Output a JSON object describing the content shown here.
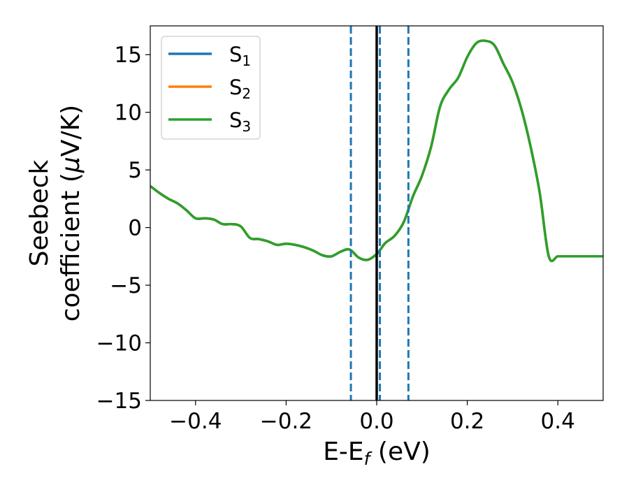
{
  "chart_data": {
    "type": "line",
    "xlabel": {
      "main": "E-E",
      "sub": "f",
      "tail": " (eV)"
    },
    "ylabel": {
      "line1": "Seebeck",
      "line2_a": "coefficient  (",
      "line2_mu": "μ",
      "line2_b": "V/K)"
    },
    "xlim": [
      -0.5,
      0.5
    ],
    "ylim": [
      -15,
      17.5
    ],
    "xticks": [
      -0.4,
      -0.2,
      0.0,
      0.2,
      0.4
    ],
    "xtick_labels": [
      "−0.4",
      "−0.2",
      "0.0",
      "0.2",
      "0.4"
    ],
    "yticks": [
      -15,
      -10,
      -5,
      0,
      5,
      10,
      15
    ],
    "ytick_labels": [
      "−15",
      "−10",
      "−5",
      "0",
      "5",
      "10",
      "15"
    ],
    "legend_position": "top-left",
    "grid": false,
    "x": [
      -0.5,
      -0.48,
      -0.46,
      -0.44,
      -0.42,
      -0.4,
      -0.38,
      -0.36,
      -0.34,
      -0.32,
      -0.3,
      -0.28,
      -0.26,
      -0.24,
      -0.22,
      -0.2,
      -0.18,
      -0.16,
      -0.14,
      -0.12,
      -0.1,
      -0.08,
      -0.06,
      -0.04,
      -0.02,
      0.0,
      0.01,
      0.02,
      0.04,
      0.06,
      0.08,
      0.1,
      0.12,
      0.14,
      0.16,
      0.18,
      0.2,
      0.22,
      0.24,
      0.26,
      0.28,
      0.3,
      0.32,
      0.34,
      0.36,
      0.38,
      0.4,
      0.42,
      0.44,
      0.46,
      0.48,
      0.5
    ],
    "series": [
      {
        "name": "S",
        "sub": "1",
        "color": "#1f77b4",
        "values": [
          3.6,
          3.0,
          2.5,
          2.1,
          1.5,
          0.8,
          0.8,
          0.7,
          0.3,
          0.3,
          0.1,
          -0.9,
          -1.0,
          -1.2,
          -1.5,
          -1.4,
          -1.5,
          -1.7,
          -2.0,
          -2.4,
          -2.5,
          -2.1,
          -1.9,
          -2.6,
          -2.8,
          -2.3,
          -1.8,
          -1.3,
          -0.7,
          0.5,
          2.7,
          4.5,
          7.0,
          10.5,
          12.0,
          13.0,
          14.8,
          16.0,
          16.2,
          15.8,
          14.2,
          12.6,
          10.2,
          7.0,
          3.0,
          -2.5,
          -2.5,
          -2.5,
          -2.5,
          -2.5,
          -2.5,
          -2.5
        ]
      },
      {
        "name": "S",
        "sub": "2",
        "color": "#ff7f0e",
        "values": [
          3.6,
          3.0,
          2.5,
          2.1,
          1.5,
          0.8,
          0.8,
          0.7,
          0.3,
          0.3,
          0.1,
          -0.9,
          -1.0,
          -1.2,
          -1.5,
          -1.4,
          -1.5,
          -1.7,
          -2.0,
          -2.4,
          -2.5,
          -2.1,
          -1.9,
          -2.6,
          -2.8,
          -2.3,
          -1.8,
          -1.3,
          -0.7,
          0.5,
          2.7,
          4.5,
          7.0,
          10.5,
          12.0,
          13.0,
          14.8,
          16.0,
          16.2,
          15.8,
          14.2,
          12.6,
          10.2,
          7.0,
          3.0,
          -2.5,
          -2.5,
          -2.5,
          -2.5,
          -2.5,
          -2.5,
          -2.5
        ]
      },
      {
        "name": "S",
        "sub": "3",
        "color": "#2ca02c",
        "values": [
          3.6,
          3.0,
          2.5,
          2.1,
          1.5,
          0.8,
          0.8,
          0.7,
          0.3,
          0.3,
          0.1,
          -0.9,
          -1.0,
          -1.2,
          -1.5,
          -1.4,
          -1.5,
          -1.7,
          -2.0,
          -2.4,
          -2.5,
          -2.1,
          -1.9,
          -2.6,
          -2.8,
          -2.3,
          -1.8,
          -1.3,
          -0.7,
          0.5,
          2.7,
          4.5,
          7.0,
          10.5,
          12.0,
          13.0,
          14.8,
          16.0,
          16.2,
          15.8,
          14.2,
          12.6,
          10.2,
          7.0,
          3.0,
          -2.5,
          -2.5,
          -2.5,
          -2.5,
          -2.5,
          -2.5,
          -2.5
        ]
      }
    ],
    "vlines": [
      {
        "x": -0.057,
        "style": "dashed",
        "color": "#1f77b4"
      },
      {
        "x": 0.007,
        "style": "dashed",
        "color": "#1f77b4"
      },
      {
        "x": 0.07,
        "style": "dashed",
        "color": "#1f77b4"
      },
      {
        "x": 0.0,
        "style": "solid",
        "color": "#000000"
      }
    ]
  }
}
